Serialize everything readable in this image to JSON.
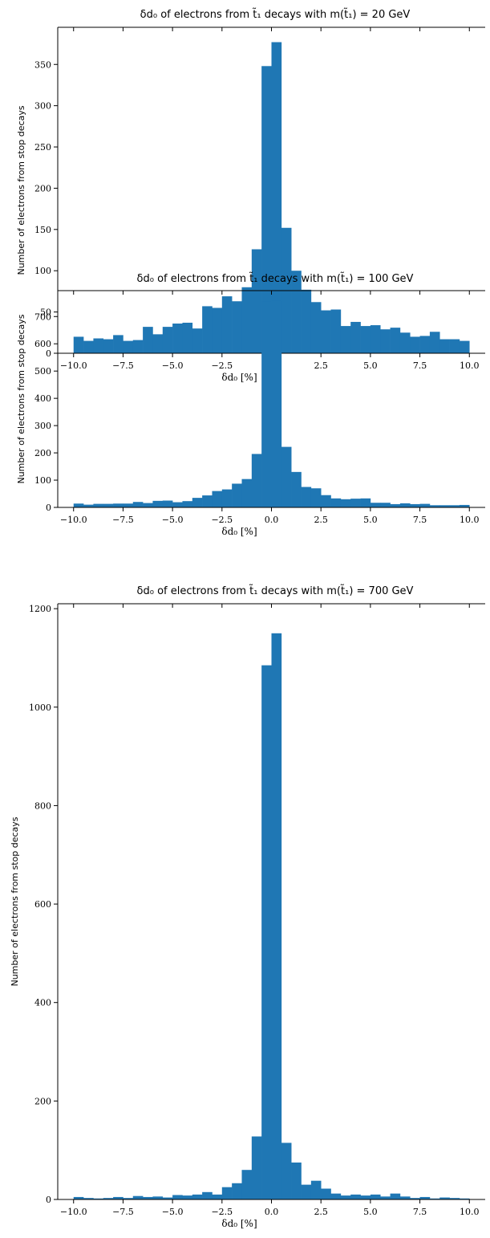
{
  "chart_data": [
    {
      "type": "bar",
      "title": "δd₀ of electrons from t̃₁ decays with m(t̃₁) = 20 GeV",
      "xlabel": "δd₀ [%]",
      "ylabel": "Number of electrons from stop decays",
      "xlim": [
        -10.8,
        10.8
      ],
      "ylim": [
        0,
        395
      ],
      "xticks": [
        -10,
        -7.5,
        -5,
        -2.5,
        0,
        2.5,
        5,
        7.5,
        10
      ],
      "xtick_labels": [
        "−10.0",
        "−7.5",
        "−5.0",
        "−2.5",
        "0.0",
        "2.5",
        "5.0",
        "7.5",
        "10.0"
      ],
      "yticks": [
        0,
        50,
        100,
        150,
        200,
        250,
        300,
        350
      ],
      "ytick_labels": [
        "0",
        "50",
        "100",
        "150",
        "200",
        "250",
        "300",
        "350"
      ],
      "bin_edges_start": -10,
      "bin_width": 0.5,
      "values": [
        20,
        15,
        18,
        17,
        22,
        15,
        16,
        32,
        23,
        32,
        36,
        37,
        30,
        57,
        55,
        69,
        63,
        80,
        126,
        348,
        377,
        152,
        100,
        77,
        62,
        52,
        53,
        33,
        38,
        33,
        34,
        29,
        31,
        25,
        20,
        21,
        26,
        17,
        17,
        15
      ],
      "color": "#1f77b4"
    },
    {
      "type": "bar",
      "title": "δd₀ of electrons from t̃₁ decays with m(t̃₁) = 100 GeV",
      "xlabel": "δd₀ [%]",
      "ylabel": "Number of electrons from stop decays",
      "xlim": [
        -10.8,
        10.8
      ],
      "ylim": [
        0,
        795
      ],
      "xticks": [
        -10,
        -7.5,
        -5,
        -2.5,
        0,
        2.5,
        5,
        7.5,
        10
      ],
      "xtick_labels": [
        "−10.0",
        "−7.5",
        "−5.0",
        "−2.5",
        "0.0",
        "2.5",
        "5.0",
        "7.5",
        "10.0"
      ],
      "yticks": [
        0,
        100,
        200,
        300,
        400,
        500,
        600,
        700
      ],
      "ytick_labels": [
        "0",
        "100",
        "200",
        "300",
        "400",
        "500",
        "600",
        "700"
      ],
      "bin_edges_start": -10,
      "bin_width": 0.5,
      "values": [
        14,
        10,
        13,
        13,
        14,
        14,
        20,
        16,
        24,
        25,
        19,
        23,
        35,
        44,
        60,
        66,
        87,
        104,
        196,
        755,
        757,
        222,
        130,
        75,
        70,
        45,
        33,
        30,
        32,
        33,
        17,
        17,
        12,
        15,
        12,
        13,
        8,
        8,
        8,
        9
      ],
      "color": "#1f77b4"
    },
    {
      "type": "bar",
      "title": "δd₀ of electrons from t̃₁ decays with m(t̃₁) = 700 GeV",
      "xlabel": "δd₀ [%]",
      "ylabel": "Number of electrons from stop decays",
      "xlim": [
        -10.8,
        10.8
      ],
      "ylim": [
        0,
        1210
      ],
      "xticks": [
        -10,
        -7.5,
        -5,
        -2.5,
        0,
        2.5,
        5,
        7.5,
        10
      ],
      "xtick_labels": [
        "−10.0",
        "−7.5",
        "−5.0",
        "−2.5",
        "0.0",
        "2.5",
        "5.0",
        "7.5",
        "10.0"
      ],
      "yticks": [
        0,
        200,
        400,
        600,
        800,
        1000,
        1200
      ],
      "ytick_labels": [
        "0",
        "200",
        "400",
        "600",
        "800",
        "1000",
        "1200"
      ],
      "bin_edges_start": -10,
      "bin_width": 0.5,
      "values": [
        5,
        3,
        2,
        3,
        5,
        3,
        7,
        5,
        6,
        4,
        9,
        8,
        10,
        15,
        10,
        25,
        33,
        60,
        128,
        1085,
        1150,
        115,
        75,
        30,
        38,
        22,
        12,
        8,
        10,
        8,
        10,
        6,
        12,
        6,
        3,
        5,
        2,
        4,
        3,
        2
      ],
      "color": "#1f77b4"
    }
  ]
}
